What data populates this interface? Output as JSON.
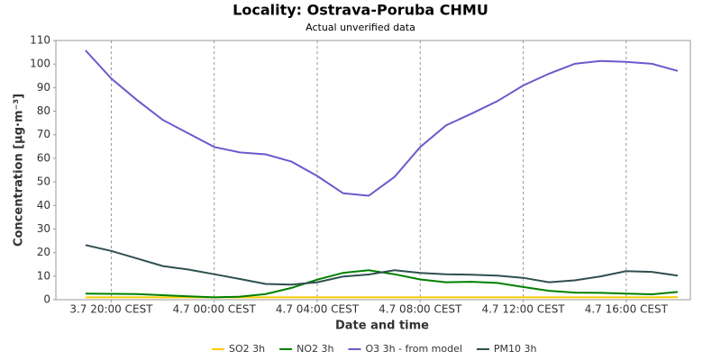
{
  "chart_data": {
    "type": "line",
    "title": "Locality: Ostrava-Poruba CHMU",
    "subtitle": "Actual unverified data",
    "x_label": "Date and time",
    "y_label": "Concentration [µg·m⁻³]",
    "categories": [
      null,
      "3.7 20:00 CEST",
      null,
      null,
      null,
      "4.7 00:00 CEST",
      null,
      null,
      null,
      "4.7 04:00 CEST",
      null,
      null,
      null,
      "4.7 08:00 CEST",
      null,
      null,
      null,
      "4.7 12:00 CEST",
      null,
      null,
      null,
      "4.7 16:00 CEST",
      null,
      null
    ],
    "series": [
      {
        "name": "SO2 3h",
        "color": "#ffcc00",
        "values": [
          1.0,
          1.0,
          1.0,
          1.0,
          1.0,
          1.0,
          1.0,
          1.0,
          1.0,
          1.0,
          1.0,
          1.0,
          1.0,
          1.0,
          1.0,
          1.0,
          1.0,
          1.0,
          1.0,
          1.0,
          1.0,
          1.0,
          1.0,
          1.1
        ]
      },
      {
        "name": "NO2 3h",
        "color": "#008000",
        "values": [
          2.6,
          2.5,
          2.4,
          1.9,
          1.4,
          1.0,
          1.3,
          2.4,
          5.0,
          8.5,
          11.4,
          12.5,
          10.8,
          8.6,
          7.4,
          7.6,
          7.1,
          5.4,
          3.8,
          3.0,
          2.9,
          2.6,
          2.3,
          3.3
        ]
      },
      {
        "name": "O3 3h - from model",
        "color": "#6a5acd",
        "values": [
          105.8,
          93.9,
          84.7,
          76.3,
          70.6,
          64.8,
          62.5,
          61.7,
          58.6,
          52.5,
          45.2,
          44.1,
          52.1,
          64.8,
          74.0,
          79.0,
          84.3,
          90.9,
          95.9,
          100.1,
          101.3,
          100.9,
          100.1,
          97.1
        ]
      },
      {
        "name": "PM10 3h",
        "color": "#2f4f4f",
        "values": [
          23.2,
          20.7,
          17.5,
          14.3,
          12.8,
          10.8,
          8.8,
          6.7,
          6.4,
          7.4,
          9.8,
          10.7,
          12.5,
          11.4,
          10.8,
          10.6,
          10.2,
          9.3,
          7.4,
          8.2,
          9.9,
          12.1,
          11.8,
          10.2
        ]
      }
    ],
    "ylim": [
      0,
      110
    ],
    "yticks": [
      0,
      10,
      20,
      30,
      40,
      50,
      60,
      70,
      80,
      90,
      100,
      110
    ],
    "grid": true,
    "legend": "bottom"
  }
}
